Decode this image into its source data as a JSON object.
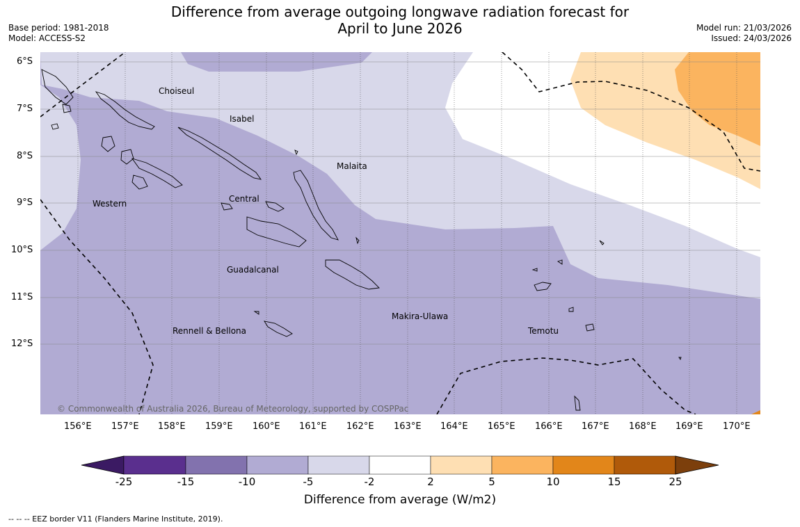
{
  "title": {
    "line1": "Difference from average outgoing longwave radiation forecast for",
    "line2": "April to June 2026"
  },
  "meta": {
    "base_period": "Base period: 1981-2018",
    "model": "Model: ACCESS-S2",
    "model_run": "Model run: 21/03/2026",
    "issued": "Issued: 24/03/2026"
  },
  "map": {
    "lat_labels": [
      "6°S",
      "7°S",
      "8°S",
      "9°S",
      "10°S",
      "11°S",
      "12°S"
    ],
    "lon_labels": [
      "156°E",
      "157°E",
      "158°E",
      "159°E",
      "160°E",
      "161°E",
      "162°E",
      "163°E",
      "164°E",
      "165°E",
      "166°E",
      "167°E",
      "168°E",
      "169°E",
      "170°E"
    ],
    "provinces": {
      "choiseul": "Choiseul",
      "isabel": "Isabel",
      "malaita": "Malaita",
      "western": "Western",
      "central": "Central",
      "guadalcanal": "Guadalcanal",
      "makira": "Makira-Ulawa",
      "temotu": "Temotu",
      "rennell": "Rennell & Bellona"
    },
    "copyright": "© Commonwealth of Australia 2026, Bureau of Meteorology, supported by COSPPac"
  },
  "colorbar": {
    "ticks": [
      "-25",
      "-15",
      "-10",
      "-5",
      "-2",
      "2",
      "5",
      "10",
      "15",
      "25"
    ],
    "colors": [
      "#3b1a63",
      "#5a2f8e",
      "#8272ae",
      "#b1abd3",
      "#d8d8ea",
      "#ffffff",
      "#fedfb3",
      "#fbb45f",
      "#e2861a",
      "#b05a0a",
      "#7c3f0c"
    ],
    "label": "Difference from average (W/m2)"
  },
  "footnote": "--  --  -- EEZ border V11 (Flanders Marine Institute, 2019)."
}
